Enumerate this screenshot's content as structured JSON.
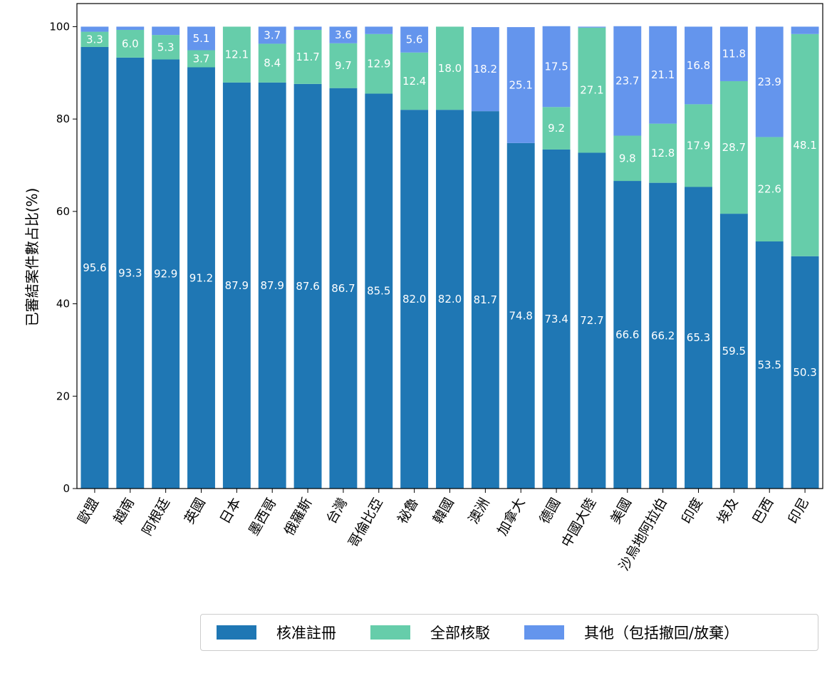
{
  "chart_data": {
    "type": "bar",
    "stacked": true,
    "ylabel": "已審結案件數占比(%)",
    "ylim": [
      0,
      105
    ],
    "yticks": [
      0,
      20,
      40,
      60,
      80,
      100
    ],
    "categories": [
      "歐盟",
      "越南",
      "阿根廷",
      "英國",
      "日本",
      "墨西哥",
      "俄羅斯",
      "台灣",
      "哥倫比亞",
      "祕魯",
      "韓國",
      "澳洲",
      "加拿大",
      "德國",
      "中國大陸",
      "美國",
      "沙烏地阿拉伯",
      "印度",
      "埃及",
      "巴西",
      "印尼"
    ],
    "series": [
      {
        "name": "核准註冊",
        "color": "#1f77b4",
        "values": [
          95.6,
          93.3,
          92.9,
          91.2,
          87.9,
          87.9,
          87.6,
          86.7,
          85.5,
          82.0,
          82.0,
          81.7,
          74.8,
          73.4,
          72.7,
          66.6,
          66.2,
          65.3,
          59.5,
          53.5,
          50.3
        ],
        "labels": [
          "95.6",
          "93.3",
          "92.9",
          "91.2",
          "87.9",
          "87.9",
          "87.6",
          "86.7",
          "85.5",
          "82.0",
          "82.0",
          "81.7",
          "74.8",
          "73.4",
          "72.7",
          "66.6",
          "66.2",
          "65.3",
          "59.5",
          "53.5",
          "50.3"
        ]
      },
      {
        "name": "全部核駁",
        "color": "#66cdaa",
        "values": [
          3.3,
          6.0,
          5.3,
          3.7,
          12.1,
          8.4,
          11.7,
          9.7,
          12.9,
          12.4,
          18.0,
          0,
          0,
          9.2,
          27.1,
          9.8,
          12.8,
          17.9,
          28.7,
          22.6,
          48.1
        ],
        "labels": [
          "3.3",
          "6.0",
          "5.3",
          "3.7",
          "12.1",
          "8.4",
          "11.7",
          "9.7",
          "12.9",
          "12.4",
          "18.0",
          "",
          "",
          "9.2",
          "27.1",
          "9.8",
          "12.8",
          "17.9",
          "28.7",
          "22.6",
          "48.1"
        ]
      },
      {
        "name": "其他（包括撤回/放棄）",
        "color": "#6495ed",
        "values": [
          1.1,
          0.7,
          1.8,
          5.1,
          0,
          3.7,
          0.7,
          3.6,
          1.6,
          5.6,
          0,
          18.2,
          25.1,
          17.5,
          0.2,
          23.7,
          21.1,
          16.8,
          11.8,
          23.9,
          1.6
        ],
        "labels": [
          "",
          "",
          "",
          "5.1",
          "",
          "3.7",
          "",
          "3.6",
          "",
          "5.6",
          "",
          "18.2",
          "25.1",
          "17.5",
          "",
          "23.7",
          "21.1",
          "16.8",
          "11.8",
          "23.9",
          ""
        ]
      }
    ],
    "legend_position": "bottom-right"
  }
}
